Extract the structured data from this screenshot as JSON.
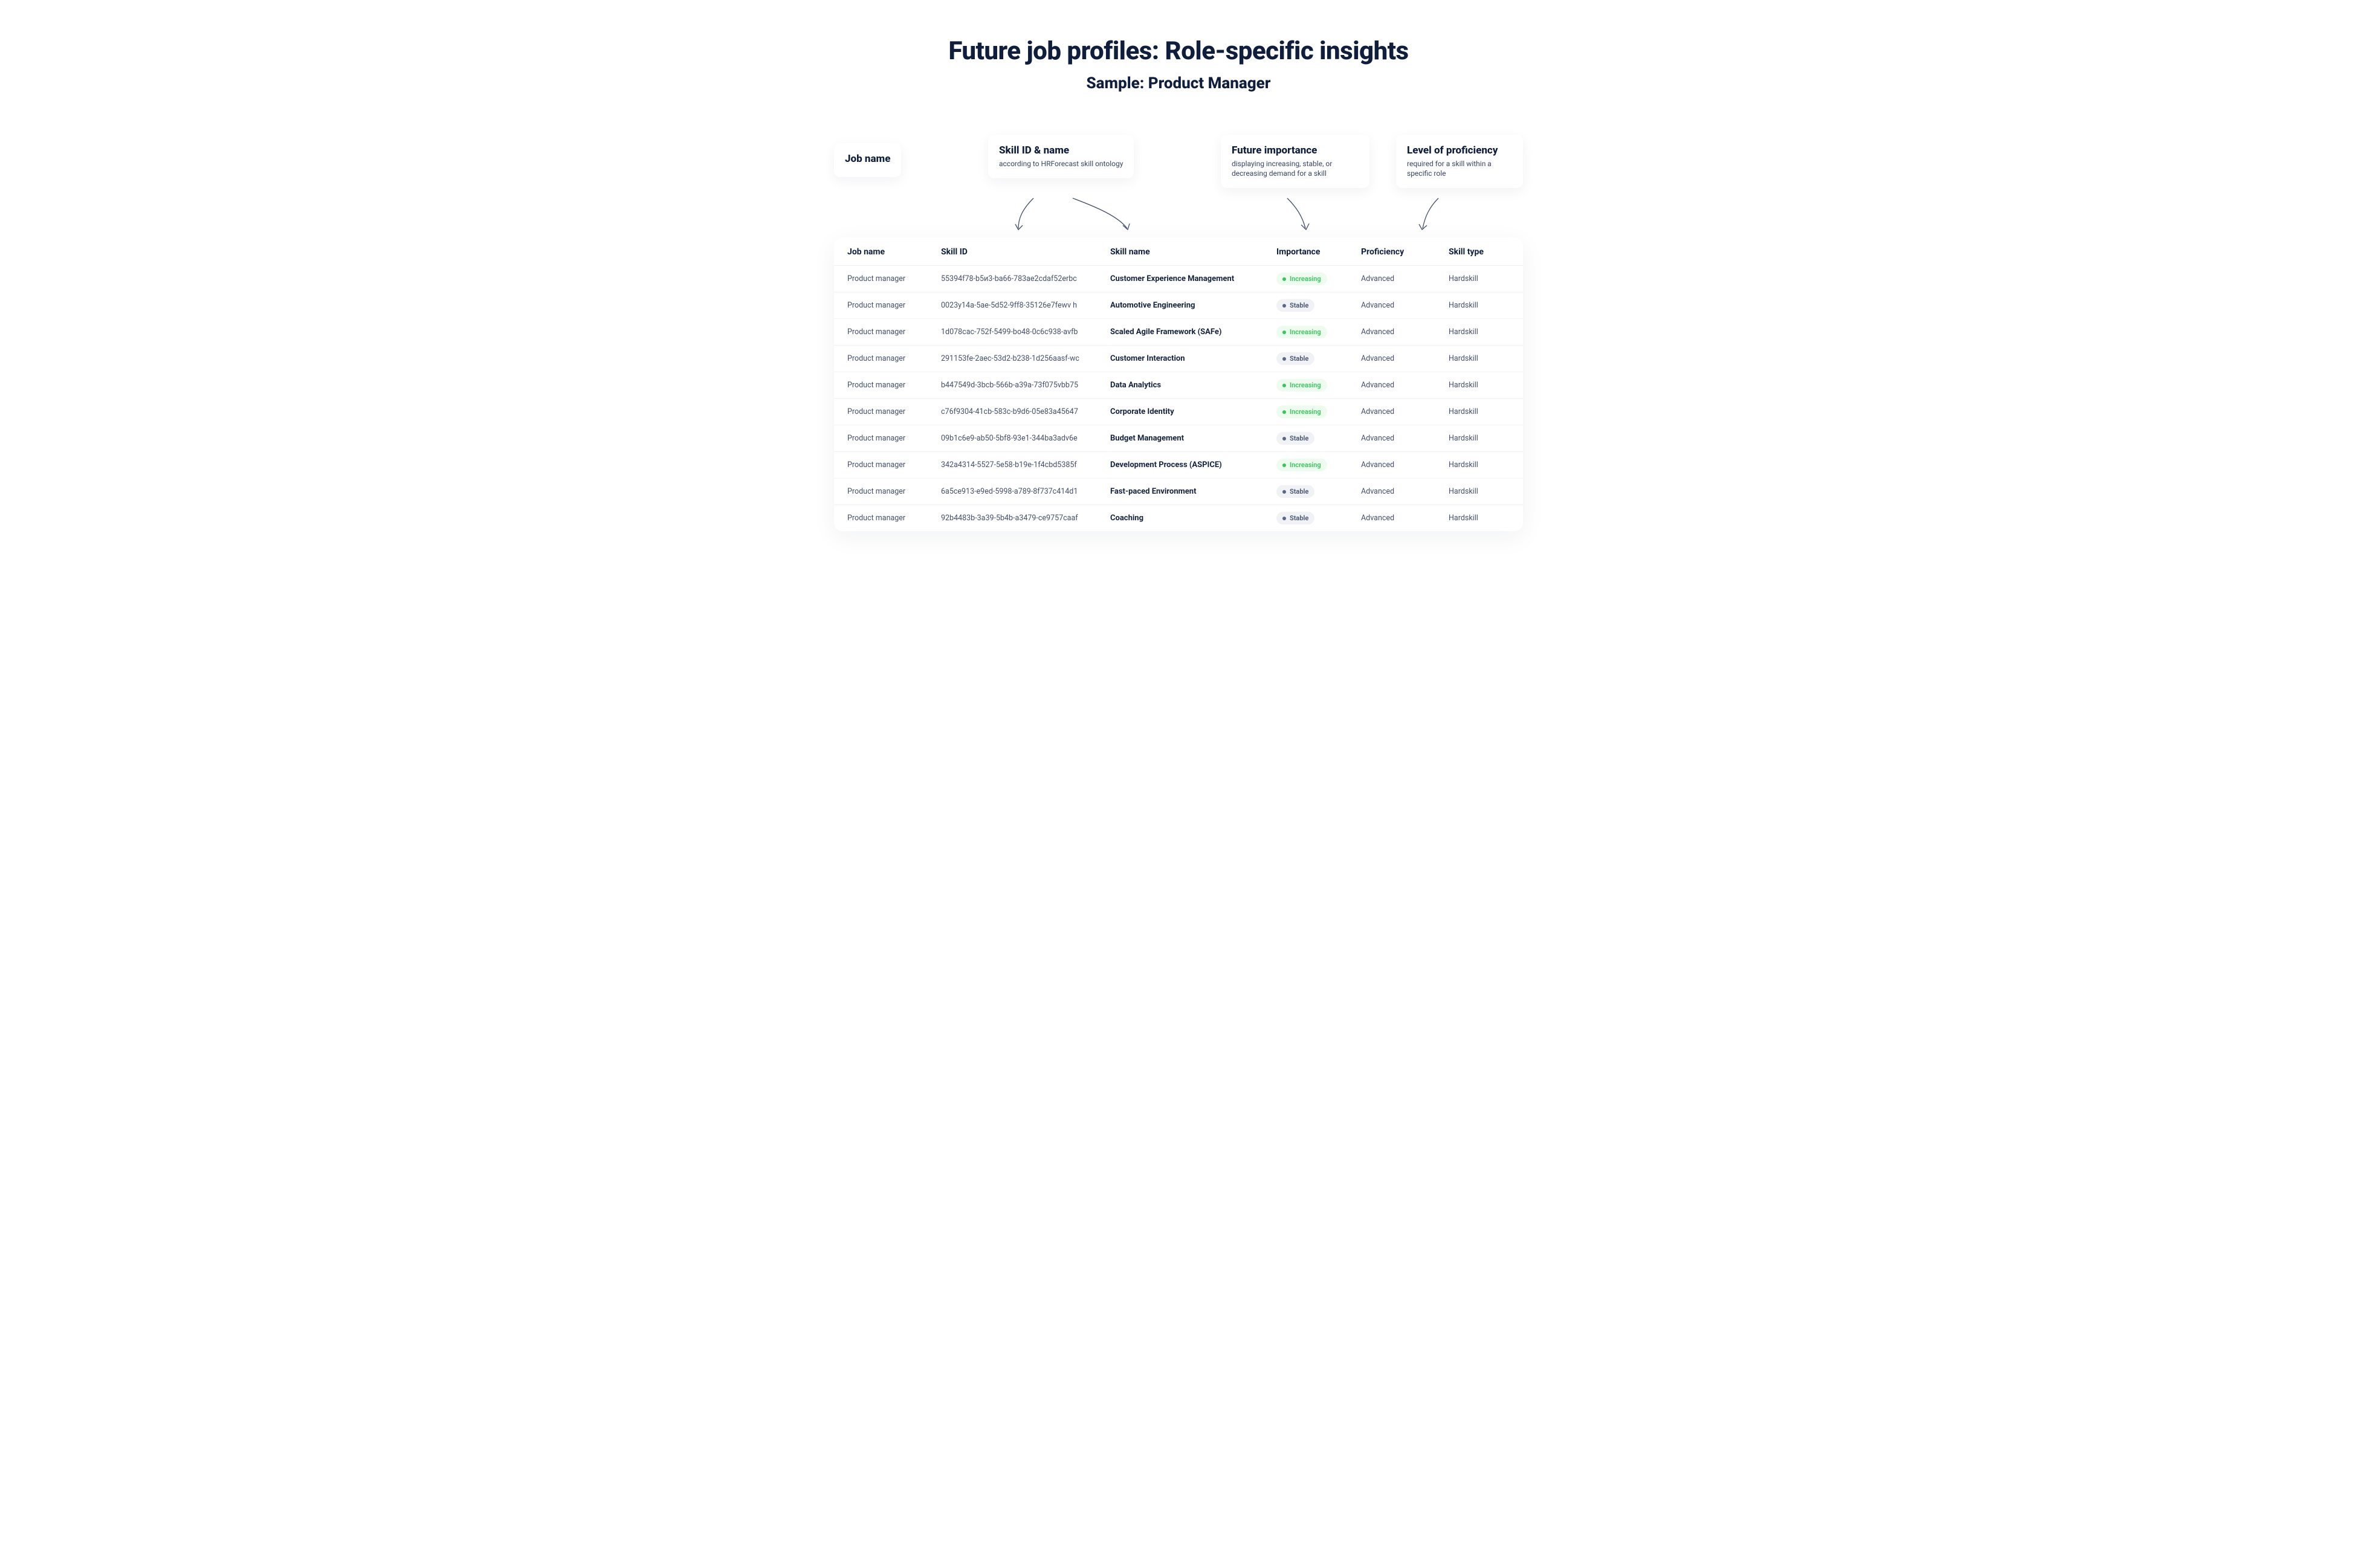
{
  "heading": {
    "title": "Future job profiles: Role-specific insights",
    "subtitle": "Sample: Product Manager"
  },
  "callouts": {
    "jobname": {
      "title": "Job name"
    },
    "skillid": {
      "title": "Skill ID & name",
      "subtitle": "according to HRForecast skill ontology"
    },
    "importance": {
      "title": "Future importance",
      "subtitle": "displaying increasing, stable, or decreasing demand for a skill"
    },
    "proficiency": {
      "title": "Level of proficiency",
      "subtitle": "required for a skill within a specific role"
    }
  },
  "colors": {
    "text_primary": "#0f1e3d",
    "text_muted": "#44506b",
    "row_border": "#f1f3f7",
    "badge_increasing_bg": "#eefcf0",
    "badge_increasing_fg": "#34c759",
    "badge_stable_bg": "#f0f2f6",
    "badge_stable_fg": "#46536e"
  },
  "table": {
    "columns": [
      "Job name",
      "Skill ID",
      "Skill name",
      "Importance",
      "Proficiency",
      "Skill type"
    ],
    "rows": [
      {
        "job": "Product manager",
        "skill_id": "55394f78-b5и3-ba66-783ae2cdaf52erbc",
        "skill_name": "Customer Experience Management",
        "importance": "Increasing",
        "proficiency": "Advanced",
        "skill_type": "Hardskill"
      },
      {
        "job": "Product manager",
        "skill_id": "0023y14a-5ae-5d52-9ff8-35126e7fewv h",
        "skill_name": "Automotive Engineering",
        "importance": "Stable",
        "proficiency": "Advanced",
        "skill_type": "Hardskill"
      },
      {
        "job": "Product manager",
        "skill_id": "1d078cac-752f-5499-bo48-0c6c938-avfb",
        "skill_name": "Scaled Agile Framework (SAFe)",
        "importance": "Increasing",
        "proficiency": "Advanced",
        "skill_type": "Hardskill"
      },
      {
        "job": "Product manager",
        "skill_id": "291153fe-2aec-53d2-b238-1d256aasf-wc",
        "skill_name": "Customer Interaction",
        "importance": "Stable",
        "proficiency": "Advanced",
        "skill_type": "Hardskill"
      },
      {
        "job": "Product manager",
        "skill_id": "b447549d-3bcb-566b-a39a-73f075vbb75",
        "skill_name": "Data Analytics",
        "importance": "Increasing",
        "proficiency": "Advanced",
        "skill_type": "Hardskill"
      },
      {
        "job": "Product manager",
        "skill_id": "c76f9304-41cb-583c-b9d6-05e83a45647",
        "skill_name": "Corporate Identity",
        "importance": "Increasing",
        "proficiency": "Advanced",
        "skill_type": "Hardskill"
      },
      {
        "job": "Product manager",
        "skill_id": "09b1c6e9-ab50-5bf8-93e1-344ba3adv6e",
        "skill_name": "Budget Management",
        "importance": "Stable",
        "proficiency": "Advanced",
        "skill_type": "Hardskill"
      },
      {
        "job": "Product manager",
        "skill_id": "342a4314-5527-5e58-b19e-1f4cbd5385f",
        "skill_name": "Development Process (ASPICE)",
        "importance": "Increasing",
        "proficiency": "Advanced",
        "skill_type": "Hardskill"
      },
      {
        "job": "Product manager",
        "skill_id": "6a5ce913-e9ed-5998-a789-8f737c414d1",
        "skill_name": "Fast-paced Environment",
        "importance": "Stable",
        "proficiency": "Advanced",
        "skill_type": "Hardskill"
      },
      {
        "job": "Product manager",
        "skill_id": "92b4483b-3a39-5b4b-a3479-ce9757caaf",
        "skill_name": "Coaching",
        "importance": "Stable",
        "proficiency": "Advanced",
        "skill_type": "Hardskill"
      }
    ]
  }
}
